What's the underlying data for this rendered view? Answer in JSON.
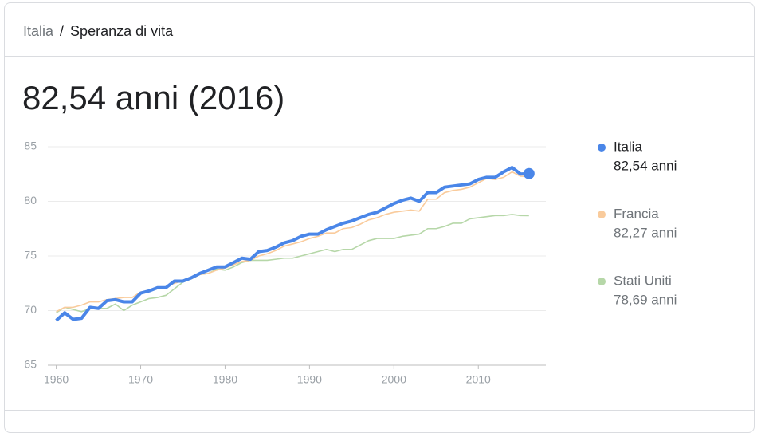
{
  "header": {
    "parent": "Italia",
    "separator": "/",
    "current": "Speranza di vita"
  },
  "chart_data": {
    "type": "line",
    "title": "82,54 anni (2016)",
    "x": [
      1960,
      1961,
      1962,
      1963,
      1964,
      1965,
      1966,
      1967,
      1968,
      1969,
      1970,
      1971,
      1972,
      1973,
      1974,
      1975,
      1976,
      1977,
      1978,
      1979,
      1980,
      1981,
      1982,
      1983,
      1984,
      1985,
      1986,
      1987,
      1988,
      1989,
      1990,
      1991,
      1992,
      1993,
      1994,
      1995,
      1996,
      1997,
      1998,
      1999,
      2000,
      2001,
      2002,
      2003,
      2004,
      2005,
      2006,
      2007,
      2008,
      2009,
      2010,
      2011,
      2012,
      2013,
      2014,
      2015,
      2016
    ],
    "series": [
      {
        "name": "Stati Uniti",
        "color": "#b6d7a8",
        "legend_label": "78,69 anni",
        "values": [
          69.8,
          70.3,
          70.1,
          69.9,
          70.2,
          70.2,
          70.2,
          70.6,
          70.0,
          70.5,
          70.8,
          71.1,
          71.2,
          71.4,
          72.0,
          72.6,
          72.9,
          73.3,
          73.4,
          73.8,
          73.7,
          74.0,
          74.4,
          74.6,
          74.6,
          74.6,
          74.7,
          74.8,
          74.8,
          75.0,
          75.2,
          75.4,
          75.6,
          75.4,
          75.6,
          75.6,
          76.0,
          76.4,
          76.6,
          76.6,
          76.6,
          76.8,
          76.9,
          77.0,
          77.5,
          77.5,
          77.7,
          78.0,
          78.0,
          78.4,
          78.5,
          78.6,
          78.7,
          78.7,
          78.8,
          78.7,
          78.69
        ]
      },
      {
        "name": "Francia",
        "color": "#f9cb9c",
        "legend_label": "82,27 anni",
        "values": [
          69.9,
          70.3,
          70.3,
          70.5,
          70.8,
          70.8,
          71.0,
          71.1,
          71.2,
          71.2,
          71.7,
          71.8,
          72.0,
          72.2,
          72.5,
          72.7,
          72.9,
          73.3,
          73.4,
          73.7,
          73.9,
          74.2,
          74.5,
          74.6,
          75.0,
          75.2,
          75.5,
          75.9,
          76.1,
          76.3,
          76.6,
          76.8,
          77.1,
          77.1,
          77.5,
          77.6,
          77.9,
          78.3,
          78.5,
          78.8,
          79.0,
          79.1,
          79.2,
          79.1,
          80.2,
          80.2,
          80.8,
          81.0,
          81.1,
          81.3,
          81.7,
          82.1,
          82.0,
          82.2,
          82.7,
          82.3,
          82.27
        ]
      },
      {
        "name": "Italia",
        "color": "#4a86e8",
        "legend_label": "82,54 anni",
        "values": [
          69.1,
          69.8,
          69.2,
          69.3,
          70.3,
          70.2,
          70.9,
          71.0,
          70.8,
          70.8,
          71.6,
          71.8,
          72.1,
          72.1,
          72.7,
          72.7,
          73.0,
          73.4,
          73.7,
          74.0,
          74.0,
          74.4,
          74.8,
          74.7,
          75.4,
          75.5,
          75.8,
          76.2,
          76.4,
          76.8,
          77.0,
          77.0,
          77.4,
          77.7,
          78.0,
          78.2,
          78.5,
          78.8,
          79.0,
          79.4,
          79.8,
          80.1,
          80.3,
          80.0,
          80.8,
          80.8,
          81.3,
          81.4,
          81.5,
          81.6,
          82.0,
          82.2,
          82.2,
          82.7,
          83.1,
          82.5,
          82.54
        ]
      }
    ],
    "xlim": [
      1959,
      2018
    ],
    "xticks": [
      1960,
      1970,
      1980,
      1990,
      2000,
      2010
    ],
    "ylim": [
      65,
      85
    ],
    "yticks": [
      65,
      70,
      75,
      80,
      85
    ],
    "grid": true
  }
}
